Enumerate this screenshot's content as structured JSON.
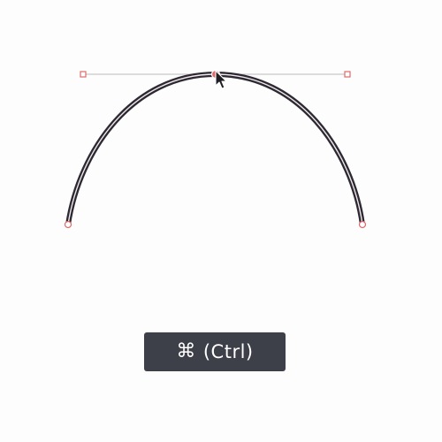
{
  "shortcut": {
    "symbol": "⌘",
    "label": "(Ctrl)"
  },
  "colors": {
    "background": "#fdfdfd",
    "path_outer": "#2b2a33",
    "path_inner": "#f4e6ea",
    "anchor": "#e06a68",
    "handle_line": "#c8c8c8",
    "badge_bg": "#3d3f49"
  },
  "icons": {
    "cursor": "arrow-cursor-icon",
    "command": "command-key-icon"
  }
}
